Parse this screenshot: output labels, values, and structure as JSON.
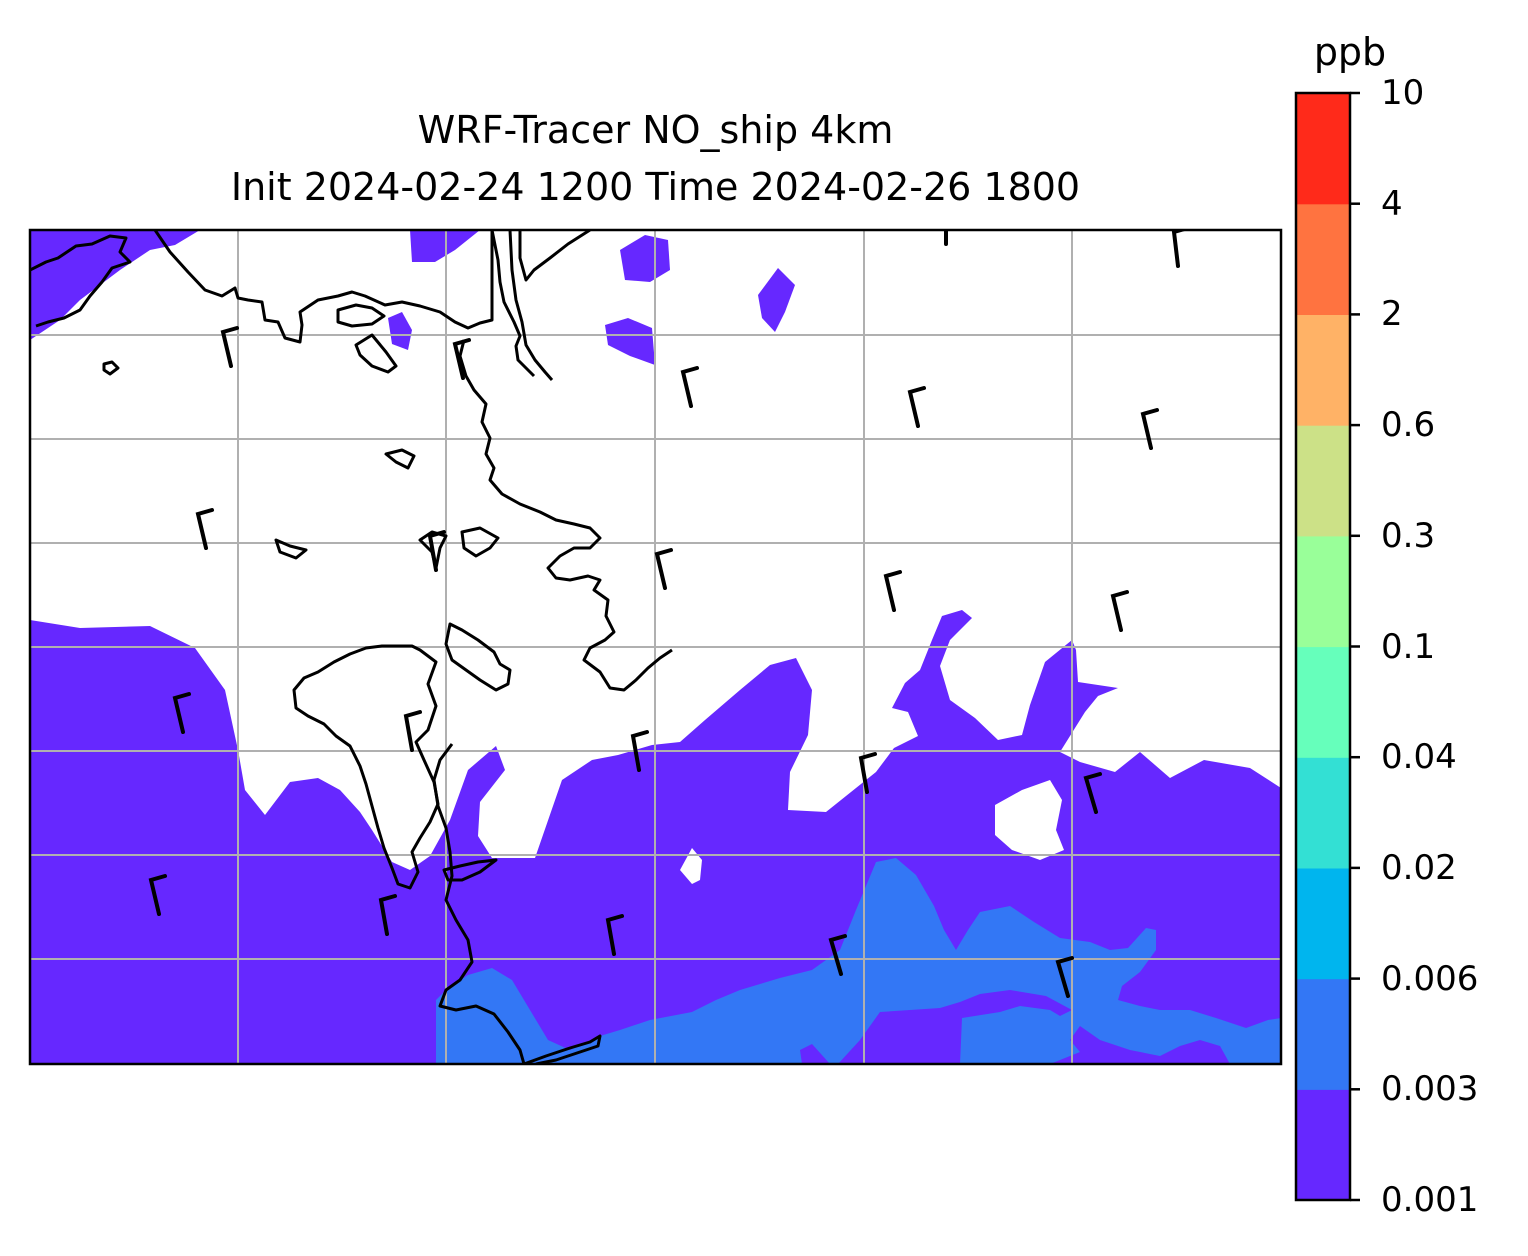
{
  "chart_data": {
    "type": "heatmap",
    "title": "WRF-Tracer NO_ship 4km",
    "subtitle": "Init 2024-02-24 1200 Time 2024-02-26 1800",
    "colorbar": {
      "unit": "ppb",
      "levels": [
        "0.001",
        "0.003",
        "0.006",
        "0.02",
        "0.04",
        "0.1",
        "0.3",
        "0.6",
        "2",
        "4",
        "10"
      ],
      "colors": [
        "#6628ff",
        "#3377f5",
        "#00b5ee",
        "#33e0d4",
        "#66ffbb",
        "#99ff99",
        "#cce187",
        "#ffb266",
        "#ff7340",
        "#ff2a1a"
      ]
    },
    "fields_shown": [
      {
        "level_band": "0.001-0.003",
        "color": "#6628ff"
      },
      {
        "level_band": "0.003-0.006",
        "color": "#3377f5"
      }
    ],
    "overlays": [
      "coastlines",
      "gridlines",
      "wind-barbs"
    ],
    "grid": true
  }
}
